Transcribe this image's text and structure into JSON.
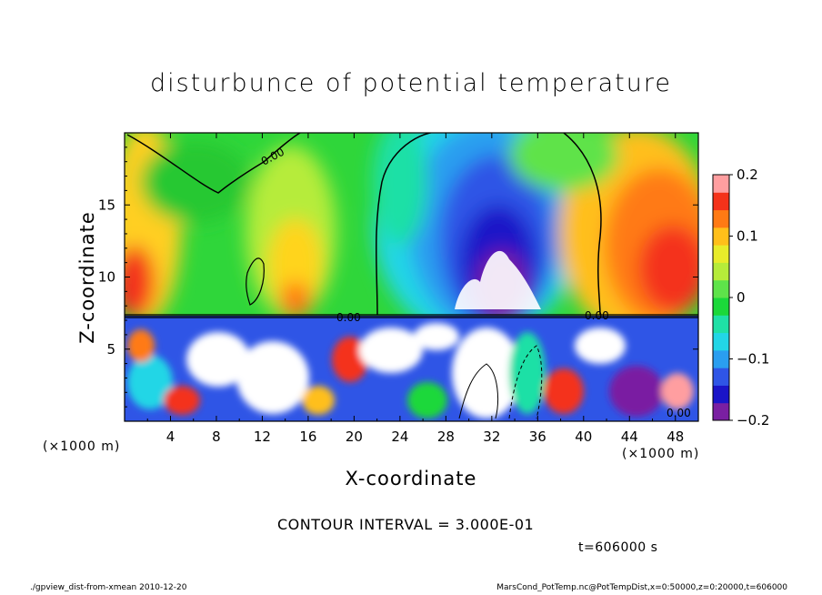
{
  "chart_data": {
    "type": "heatmap",
    "title": "disturbunce of potential temperature",
    "xlabel": "X-coordinate",
    "ylabel": "Z-coordinate",
    "x_unit_left": "(×1000 m)",
    "x_unit_right": "(×1000 m)",
    "xlim": [
      0,
      50
    ],
    "ylim": [
      0,
      20
    ],
    "xticks": [
      4,
      8,
      12,
      16,
      20,
      24,
      28,
      32,
      36,
      40,
      44,
      48
    ],
    "yticks": [
      5,
      10,
      15
    ],
    "colorbar": {
      "range": [
        -0.2,
        0.2
      ],
      "ticks": [
        0.2,
        0.1,
        0,
        -0.1,
        -0.2
      ],
      "tick_labels": [
        "0.2",
        "0.1",
        "0",
        "−0.1",
        "−0.2"
      ],
      "colors": [
        "#7a1fa2",
        "#1a14c8",
        "#2f55e6",
        "#2a9ef0",
        "#22d6e6",
        "#1fe0a6",
        "#1bd83a",
        "#5ee34a",
        "#b6ec3a",
        "#e8ec2a",
        "#ffbf1a",
        "#ff7a14",
        "#f4321a",
        "#ff9ea0"
      ]
    },
    "contour_labels": [
      "0.00",
      "0.00",
      "0.00",
      "0.00"
    ],
    "contour_interval": "CONTOUR INTERVAL = 3.000E-01",
    "time": "t=606000 s",
    "grid": false
  },
  "footer": {
    "left": "./gpview_dist-from-xmean  2010-12-20",
    "right": "MarsCond_PotTemp.nc@PotTempDist,x=0:50000,z=0:20000,t=606000"
  }
}
